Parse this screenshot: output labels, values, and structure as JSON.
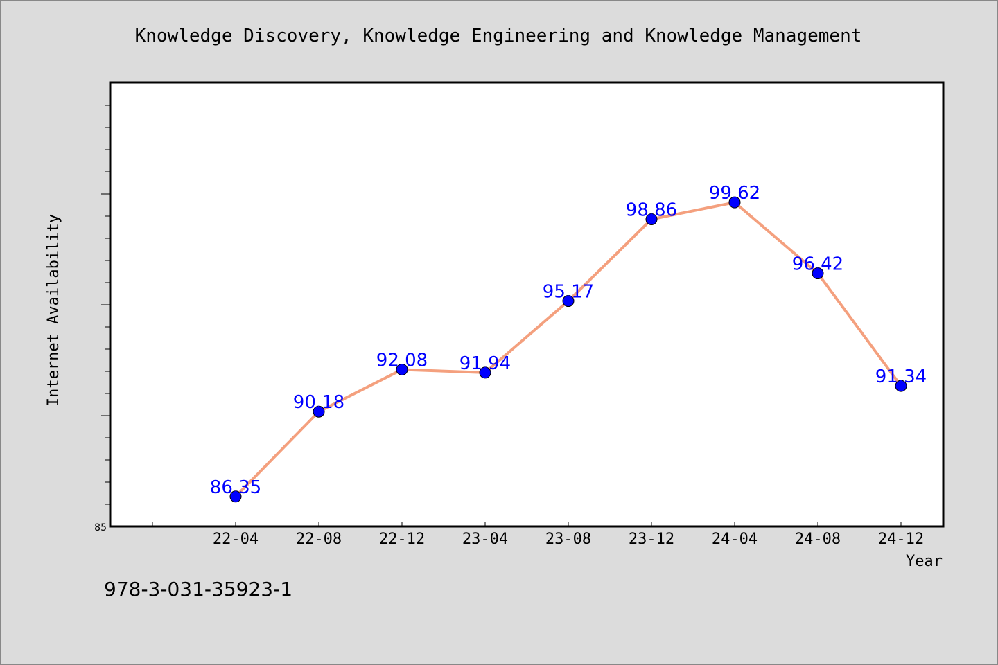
{
  "caption": "978-3-031-35923-1",
  "chart_data": {
    "type": "line",
    "title": "Knowledge Discovery, Knowledge Engineering and Knowledge Management",
    "xlabel": "Year",
    "ylabel": "Internet Availability",
    "categories": [
      "22-04",
      "22-08",
      "22-12",
      "23-04",
      "23-08",
      "23-12",
      "24-04",
      "24-08",
      "24-12"
    ],
    "series": [
      {
        "values": [
          86.35,
          90.18,
          92.08,
          91.94,
          95.17,
          98.86,
          99.62,
          96.42,
          91.34
        ],
        "data_labels": [
          "86.35",
          "90.18",
          "92.08",
          "91.94",
          "95.17",
          "98.86",
          "99.62",
          "96.42",
          "91.34"
        ],
        "line_color": "#f4a07e",
        "marker_color": "#0000ff",
        "label_color": "#0000ff"
      }
    ],
    "ylim": [
      85,
      105
    ],
    "y_tick_labels": [
      "85"
    ],
    "grid": false,
    "legend": "none",
    "background": "#ffffff",
    "page_background": "#dcdcdc"
  }
}
